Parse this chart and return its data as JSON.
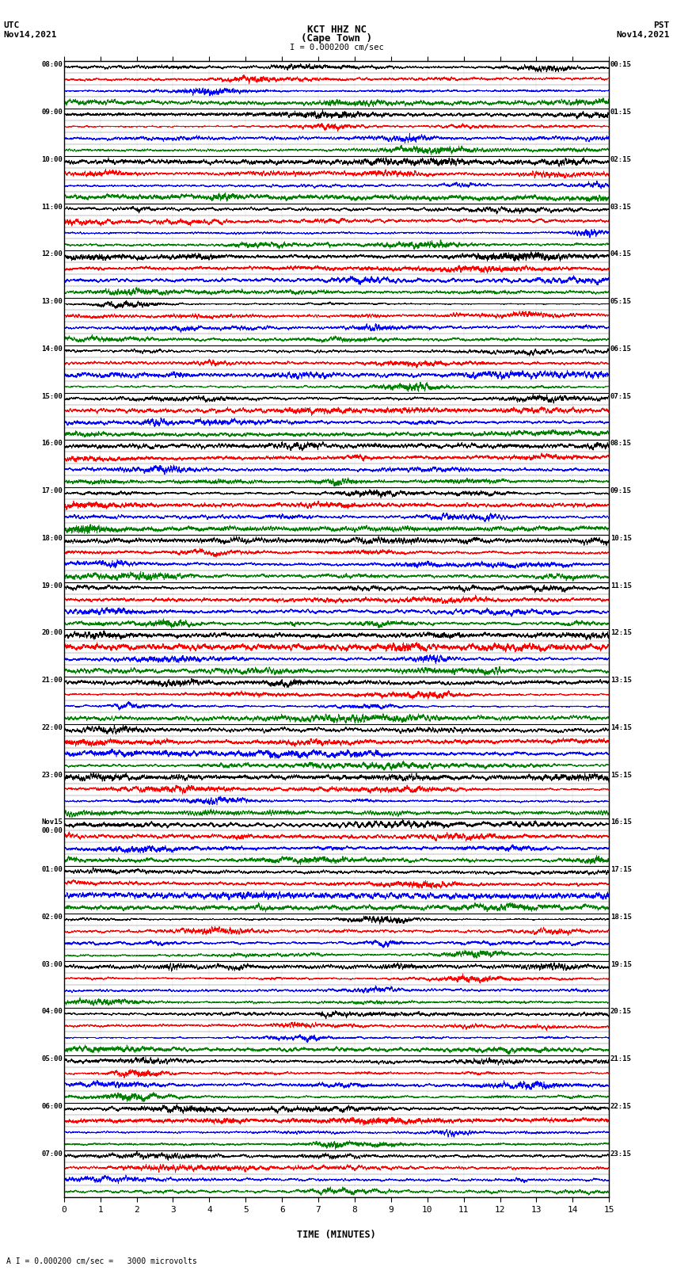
{
  "title_line1": "KCT HHZ NC",
  "title_line2": "(Cape Town )",
  "scale_text": "I = 0.000200 cm/sec",
  "left_header": "UTC\nNov14,2021",
  "right_header": "PST\nNov14,2021",
  "bottom_label": "TIME (MINUTES)",
  "bottom_note": "A I = 0.000200 cm/sec =   3000 microvolts",
  "left_times": [
    "08:00",
    "09:00",
    "10:00",
    "11:00",
    "12:00",
    "13:00",
    "14:00",
    "15:00",
    "16:00",
    "17:00",
    "18:00",
    "19:00",
    "20:00",
    "21:00",
    "22:00",
    "23:00",
    "Nov15\n00:00",
    "01:00",
    "02:00",
    "03:00",
    "04:00",
    "05:00",
    "06:00",
    "07:00"
  ],
  "right_times": [
    "00:15",
    "01:15",
    "02:15",
    "03:15",
    "04:15",
    "05:15",
    "06:15",
    "07:15",
    "08:15",
    "09:15",
    "10:15",
    "11:15",
    "12:15",
    "13:15",
    "14:15",
    "15:15",
    "16:15",
    "17:15",
    "18:15",
    "19:15",
    "20:15",
    "21:15",
    "22:15",
    "23:15"
  ],
  "num_rows": 24,
  "num_traces_per_row": 4,
  "colors": [
    "black",
    "red",
    "blue",
    "green"
  ],
  "x_ticks": [
    0,
    1,
    2,
    3,
    4,
    5,
    6,
    7,
    8,
    9,
    10,
    11,
    12,
    13,
    14,
    15
  ],
  "bg_color": "white",
  "figsize": [
    8.5,
    16.13
  ],
  "dpi": 100,
  "x_min": 0,
  "x_max": 15
}
